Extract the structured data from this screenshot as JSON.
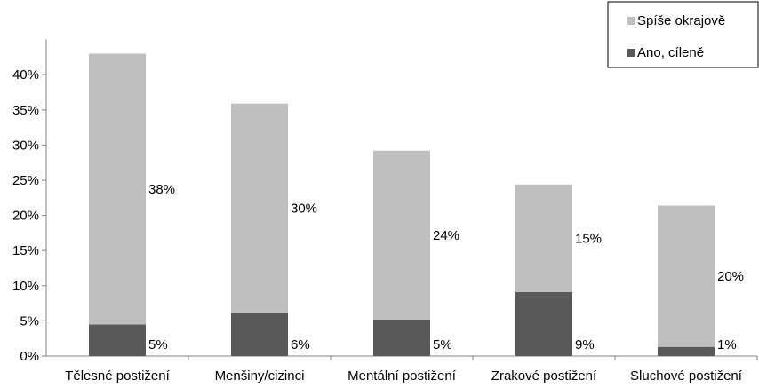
{
  "chart_data": {
    "type": "bar",
    "stacked": true,
    "categories": [
      "Tělesné postižení",
      "Menšiny/cizinci",
      "Mentální postižení",
      "Zrakové postižení",
      "Sluchové postižení"
    ],
    "series": [
      {
        "name": "Ano, cíleně",
        "values": [
          4.5,
          6.2,
          5.2,
          9.1,
          1.3
        ],
        "labels": [
          "5%",
          "6%",
          "5%",
          "9%",
          "1%"
        ],
        "color": "#595959"
      },
      {
        "name": "Spíše okrajově",
        "values": [
          38.5,
          29.7,
          24.0,
          15.3,
          20.1
        ],
        "labels": [
          "38%",
          "30%",
          "24%",
          "15%",
          "20%"
        ],
        "color": "#bfbfbf"
      }
    ],
    "ylim": [
      0,
      45
    ],
    "yticks": [
      0,
      5,
      10,
      15,
      20,
      25,
      30,
      35,
      40
    ],
    "ytick_labels": [
      "0%",
      "5%",
      "10%",
      "15%",
      "20%",
      "25%",
      "30%",
      "35%",
      "40%"
    ],
    "title": "",
    "xlabel": "",
    "ylabel": "",
    "grid": false,
    "legend": {
      "position": "top-right",
      "entries": [
        {
          "label": "Spíše okrajově",
          "color": "#bfbfbf"
        },
        {
          "label": "Ano, cíleně",
          "color": "#595959"
        }
      ]
    }
  }
}
